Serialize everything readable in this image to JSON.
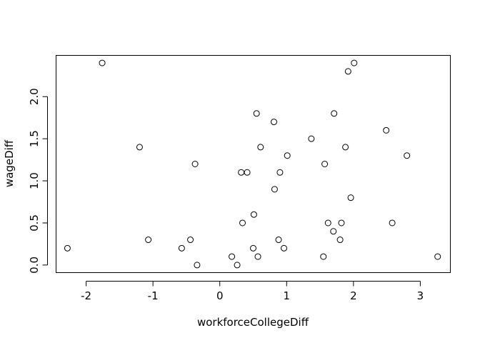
{
  "chart_data": {
    "type": "scatter",
    "title": "",
    "xlabel": "workforceCollegeDiff",
    "ylabel": "wageDiff",
    "xlim": [
      -2.45,
      3.45
    ],
    "ylim": [
      -0.09,
      2.49
    ],
    "xticks": [
      -2,
      -1,
      0,
      1,
      2,
      3
    ],
    "xtick_labels": [
      "-2",
      "-1",
      "0",
      "1",
      "2",
      "3"
    ],
    "yticks": [
      0.0,
      0.5,
      1.0,
      1.5,
      2.0
    ],
    "ytick_labels": [
      "0.0",
      "0.5",
      "1.0",
      "1.5",
      "2.0"
    ],
    "grid": false,
    "points": [
      {
        "x": -2.28,
        "y": 0.2
      },
      {
        "x": -1.76,
        "y": 2.4
      },
      {
        "x": -1.2,
        "y": 1.4
      },
      {
        "x": -1.07,
        "y": 0.3
      },
      {
        "x": -0.57,
        "y": 0.2
      },
      {
        "x": -0.44,
        "y": 0.3
      },
      {
        "x": -0.37,
        "y": 1.2
      },
      {
        "x": -0.34,
        "y": 0.0
      },
      {
        "x": 0.18,
        "y": 0.1
      },
      {
        "x": 0.26,
        "y": 0.0
      },
      {
        "x": 0.32,
        "y": 1.1
      },
      {
        "x": 0.34,
        "y": 0.5
      },
      {
        "x": 0.41,
        "y": 1.1
      },
      {
        "x": 0.5,
        "y": 0.2
      },
      {
        "x": 0.51,
        "y": 0.6
      },
      {
        "x": 0.55,
        "y": 1.8
      },
      {
        "x": 0.57,
        "y": 0.1
      },
      {
        "x": 0.61,
        "y": 1.4
      },
      {
        "x": 0.81,
        "y": 1.7
      },
      {
        "x": 0.82,
        "y": 0.9
      },
      {
        "x": 0.88,
        "y": 0.3
      },
      {
        "x": 0.9,
        "y": 1.1
      },
      {
        "x": 0.96,
        "y": 0.2
      },
      {
        "x": 1.01,
        "y": 1.3
      },
      {
        "x": 1.37,
        "y": 1.5
      },
      {
        "x": 1.55,
        "y": 0.1
      },
      {
        "x": 1.57,
        "y": 1.2
      },
      {
        "x": 1.62,
        "y": 0.5
      },
      {
        "x": 1.7,
        "y": 0.4
      },
      {
        "x": 1.71,
        "y": 1.8
      },
      {
        "x": 1.8,
        "y": 0.3
      },
      {
        "x": 1.82,
        "y": 0.5
      },
      {
        "x": 1.88,
        "y": 1.4
      },
      {
        "x": 1.92,
        "y": 2.3
      },
      {
        "x": 1.96,
        "y": 0.8
      },
      {
        "x": 2.01,
        "y": 2.4
      },
      {
        "x": 2.49,
        "y": 1.6
      },
      {
        "x": 2.58,
        "y": 0.5
      },
      {
        "x": 2.8,
        "y": 1.3
      },
      {
        "x": 3.26,
        "y": 0.1
      }
    ]
  }
}
